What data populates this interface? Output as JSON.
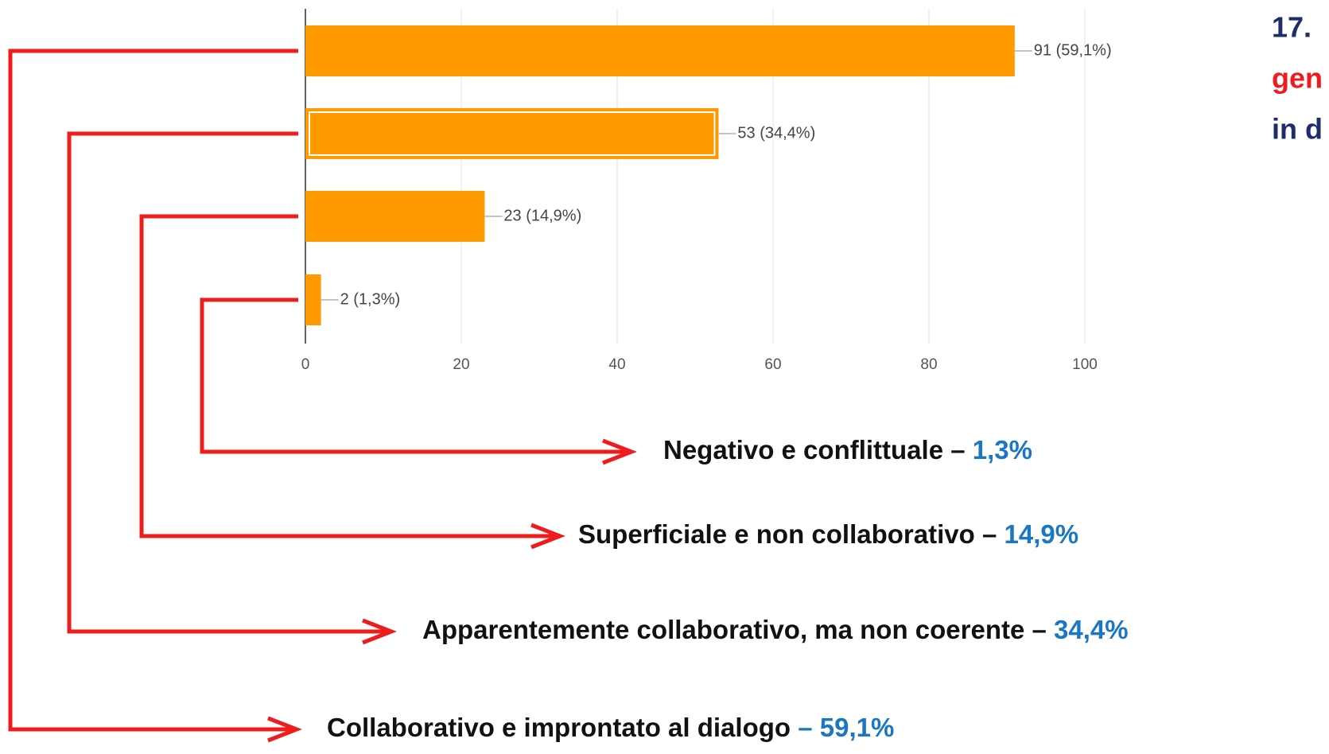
{
  "chart_data": {
    "type": "bar",
    "orientation": "horizontal",
    "title_lines": [
      {
        "text": "17.",
        "color": "#1f2d6b"
      },
      {
        "text": "gen",
        "color": "#ee1c1c"
      },
      {
        "text": "in d",
        "color": "#1f2d6b"
      }
    ],
    "categories": [
      null,
      null,
      null,
      null
    ],
    "values": [
      91,
      53,
      23,
      2
    ],
    "value_labels": [
      "91 (59,1%)",
      "53 (34,4%)",
      "23 (14,9%)",
      "2 (1,3%)"
    ],
    "color": "#ff9900",
    "xlim": [
      0,
      100
    ],
    "xticks": [
      0,
      20,
      40,
      60,
      80,
      100
    ],
    "grid": true,
    "annotations": [
      {
        "text": "Collaborativo e improntato al dialogo",
        "value_label": "– 59,1%"
      },
      {
        "text": "Apparentemente collaborativo, ma non coerente –",
        "value_label": "34,4%"
      },
      {
        "text": "Superficiale e non collaborativo –",
        "value_label": "14,9%"
      },
      {
        "text": "Negativo e conflittuale –",
        "value_label": "1,3%"
      }
    ],
    "connector_color": "#ee1c1c"
  }
}
